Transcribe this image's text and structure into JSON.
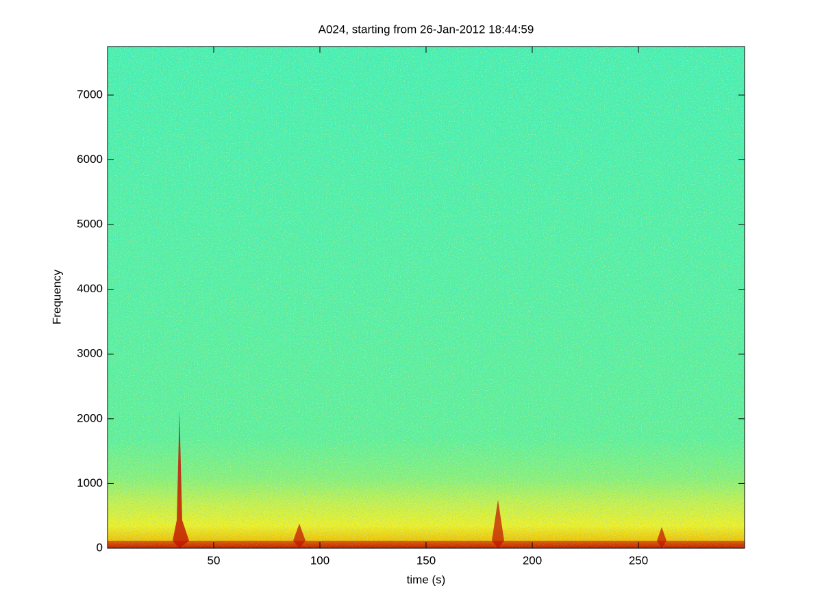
{
  "chart_data": {
    "type": "spectrogram",
    "title": "A024, starting from 26-Jan-2012 18:44:59",
    "xlabel": "time (s)",
    "ylabel": "Frequency",
    "xlim": [
      0,
      300
    ],
    "ylim": [
      0,
      7750
    ],
    "xticks": [
      50,
      100,
      150,
      200,
      250
    ],
    "yticks": [
      0,
      1000,
      2000,
      3000,
      4000,
      5000,
      6000,
      7000
    ]
  }
}
